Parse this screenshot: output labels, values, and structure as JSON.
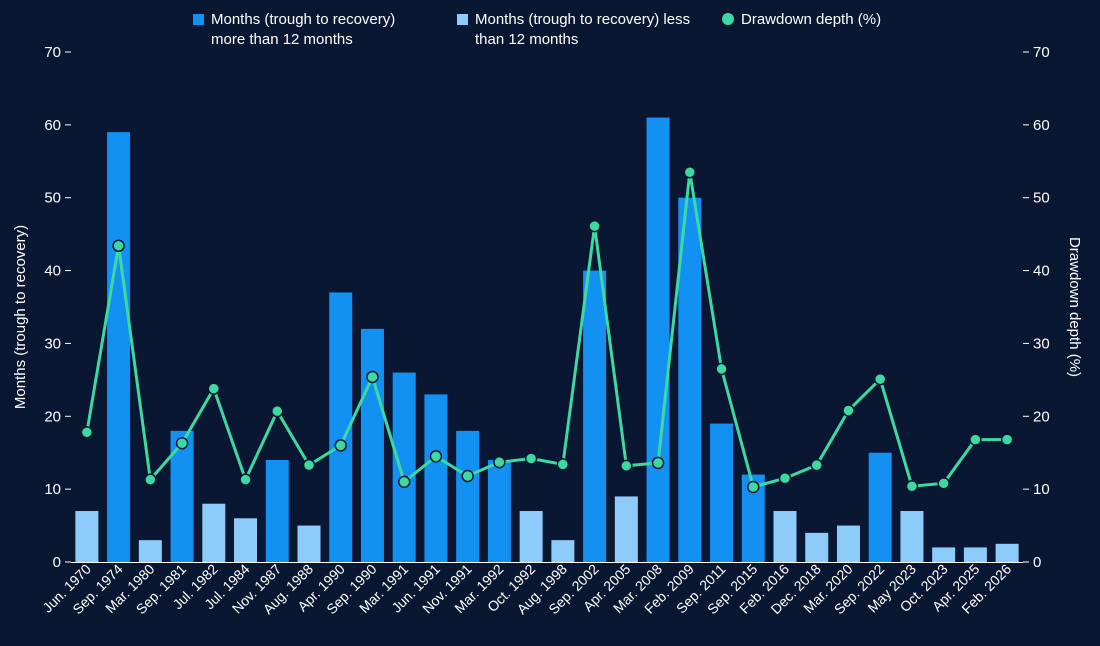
{
  "legend": {
    "item1": "Months (trough to recovery) more than 12 months",
    "item2": "Months (trough to recovery) less than 12 months",
    "item3": "Drawdown depth (%)"
  },
  "colors": {
    "background": "#0a1733",
    "bar_long": "#1391f3",
    "bar_short": "#8ccbfa",
    "line": "#3dd9a1",
    "text": "#ffffff"
  },
  "chart_data": {
    "type": "bar",
    "categories": [
      "Jun. 1970",
      "Sep. 1974",
      "Mar. 1980",
      "Sep. 1981",
      "Jul. 1982",
      "Jul. 1984",
      "Nov. 1987",
      "Aug. 1988",
      "Apr. 1990",
      "Sep. 1990",
      "Mar. 1991",
      "Jun. 1991",
      "Nov. 1991",
      "Mar. 1992",
      "Oct. 1992",
      "Aug. 1998",
      "Sep. 2002",
      "Apr. 2005",
      "Mar. 2008",
      "Feb. 2009",
      "Sep. 2011",
      "Sep. 2015",
      "Feb. 2016",
      "Dec. 2018",
      "Mar. 2020",
      "Sep. 2022",
      "May 2023",
      "Oct. 2023",
      "Apr. 2025",
      "Feb. 2026"
    ],
    "series": [
      {
        "name": "Months (trough to recovery) more than 12 months",
        "type": "bar",
        "axis": "left",
        "values": [
          null,
          59,
          null,
          18,
          null,
          null,
          14,
          null,
          37,
          32,
          26,
          23,
          18,
          14,
          null,
          null,
          40,
          null,
          61,
          50,
          19,
          12,
          null,
          null,
          null,
          15,
          null,
          null,
          null,
          null
        ]
      },
      {
        "name": "Months (trough to recovery) less than 12 months",
        "type": "bar",
        "axis": "left",
        "values": [
          7,
          null,
          3,
          null,
          8,
          6,
          null,
          5,
          null,
          null,
          null,
          null,
          null,
          null,
          7,
          3,
          null,
          9,
          null,
          null,
          null,
          null,
          7,
          4,
          5,
          null,
          7,
          2,
          2,
          2.5
        ]
      },
      {
        "name": "Drawdown depth (%)",
        "type": "line",
        "axis": "right",
        "values": [
          17.8,
          43.4,
          11.3,
          16.3,
          23.8,
          11.3,
          20.7,
          13.3,
          16.0,
          25.4,
          11.0,
          14.5,
          11.8,
          13.7,
          14.2,
          13.4,
          46.1,
          13.2,
          13.6,
          53.5,
          26.5,
          10.3,
          11.5,
          13.3,
          20.8,
          25.1,
          10.4,
          10.8,
          16.8,
          16.8
        ]
      }
    ],
    "ylabel": "Months (trough to recovery)",
    "y2label": "Drawdown depth (%)",
    "ylim": [
      0,
      70
    ],
    "y2lim": [
      0,
      70
    ],
    "yticks": [
      0,
      10,
      20,
      30,
      40,
      50,
      60,
      70
    ],
    "grid": false,
    "legend_position": "top"
  }
}
